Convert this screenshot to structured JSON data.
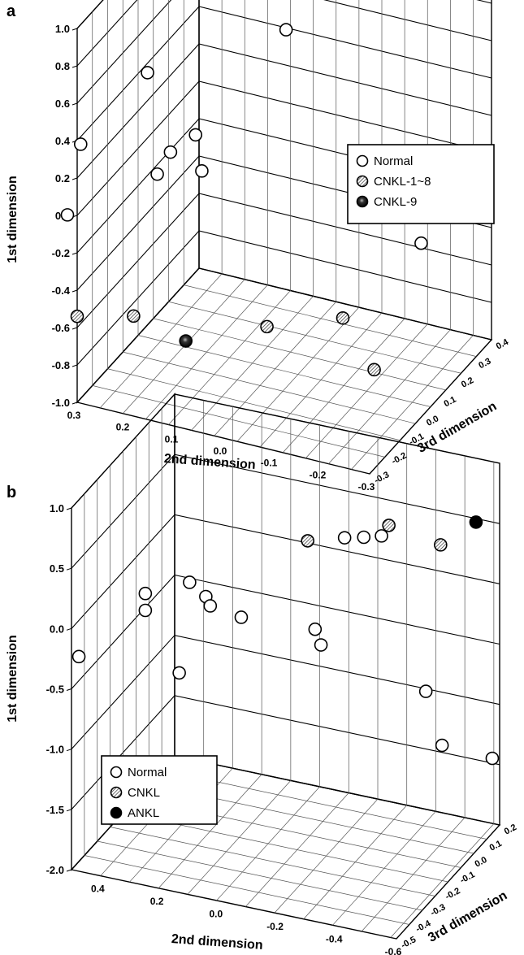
{
  "chart_data": [
    {
      "panel_label": "a",
      "type": "scatter",
      "title": "",
      "ylabel": "1st dimension",
      "xlabel": "2nd dimension",
      "zlabel": "3rd dimension",
      "ylim": [
        -1.0,
        1.0
      ],
      "xlim": [
        0.3,
        -0.3
      ],
      "zlim": [
        -0.3,
        0.4
      ],
      "y_ticks": [
        "1.0",
        "0.8",
        "0.6",
        "0.4",
        "0.2",
        "0.0",
        "-0.2",
        "-0.4",
        "-0.6",
        "-0.8",
        "-1.0"
      ],
      "x_ticks": [
        "0.3",
        "0.2",
        "0.1",
        "0.0",
        "-0.1",
        "-0.2",
        "-0.3"
      ],
      "z_ticks": [
        "-0.3",
        "-0.2",
        "-0.1",
        "0.0",
        "0.1",
        "0.2",
        "0.3",
        "0.4"
      ],
      "grid": true,
      "legend_position": "right",
      "legend": [
        {
          "label": "Normal",
          "marker": "open"
        },
        {
          "label": "CNKL-1~8",
          "marker": "hatched"
        },
        {
          "label": "CNKL-9",
          "marker": "dark"
        }
      ],
      "series": [
        {
          "name": "Normal",
          "marker": "open",
          "points": [
            {
              "x": 0.14,
              "y": 0.89,
              "z": 0.25
            },
            {
              "x": 0.1,
              "y": 0.9,
              "z": 0.32
            },
            {
              "x": 0.08,
              "y": 0.69,
              "z": 0.34
            },
            {
              "x": 0.05,
              "y": 0.64,
              "z": 0.2
            },
            {
              "x": 0.22,
              "y": 0.63,
              "z": -0.12
            },
            {
              "x": 0.3,
              "y": 0.36,
              "z": -0.28
            },
            {
              "x": 0.18,
              "y": 0.21,
              "z": -0.1
            },
            {
              "x": 0.15,
              "y": 0.26,
              "z": -0.04
            },
            {
              "x": 0.2,
              "y": 0.1,
              "z": -0.12
            },
            {
              "x": 0.13,
              "y": 0.1,
              "z": -0.06
            },
            {
              "x": 0.32,
              "y": -0.01,
              "z": -0.3
            },
            {
              "x": -0.22,
              "y": -0.35,
              "z": 0.22
            }
          ]
        },
        {
          "name": "CNKL-1~8",
          "marker": "hatched",
          "points": [
            {
              "x": 0.3,
              "y": -0.54,
              "z": -0.3
            },
            {
              "x": 0.22,
              "y": -0.59,
              "z": -0.2
            },
            {
              "x": 0.0,
              "y": -0.66,
              "z": -0.05
            },
            {
              "x": -0.12,
              "y": -0.64,
              "z": 0.05
            },
            {
              "x": -0.22,
              "y": -0.75,
              "z": -0.05
            }
          ]
        },
        {
          "name": "CNKL-9",
          "marker": "dark",
          "points": [
            {
              "x": 0.12,
              "y": -0.68,
              "z": -0.18
            }
          ]
        }
      ]
    },
    {
      "panel_label": "b",
      "type": "scatter",
      "title": "",
      "ylabel": "1st dimension",
      "xlabel": "2nd dimension",
      "zlabel": "3rd dimension",
      "ylim": [
        -2.0,
        1.0
      ],
      "xlim": [
        0.5,
        -0.6
      ],
      "zlim": [
        -0.5,
        0.2
      ],
      "y_ticks": [
        "1.0",
        "0.5",
        "0.0",
        "-0.5",
        "-1.0",
        "-1.5",
        "-2.0"
      ],
      "x_ticks": [
        "0.4",
        "0.2",
        "0.0",
        "-0.2",
        "-0.4",
        "-0.6"
      ],
      "z_ticks": [
        "-0.5",
        "-0.4",
        "-0.3",
        "-0.2",
        "-0.1",
        "0.0",
        "0.1",
        "0.2"
      ],
      "grid": true,
      "legend_position": "bottom-left",
      "legend": [
        {
          "label": "Normal",
          "marker": "open"
        },
        {
          "label": "CNKL",
          "marker": "hatched"
        },
        {
          "label": "ANKL",
          "marker": "filled"
        }
      ],
      "series": [
        {
          "name": "Normal",
          "marker": "open",
          "points": [
            {
              "x": 0.5,
              "y": -0.3,
              "z": -0.45
            },
            {
              "x": 0.3,
              "y": 0.26,
              "z": -0.4
            },
            {
              "x": 0.3,
              "y": 0.12,
              "z": -0.4
            },
            {
              "x": 0.2,
              "y": 0.27,
              "z": -0.3
            },
            {
              "x": 0.17,
              "y": 0.1,
              "z": -0.25
            },
            {
              "x": 0.18,
              "y": -0.05,
              "z": -0.2
            },
            {
              "x": 0.1,
              "y": -0.17,
              "z": -0.15
            },
            {
              "x": 0.26,
              "y": -0.58,
              "z": -0.25
            },
            {
              "x": -0.1,
              "y": -0.3,
              "z": -0.05
            },
            {
              "x": -0.12,
              "y": -0.42,
              "z": -0.05
            },
            {
              "x": -0.15,
              "y": 0.35,
              "z": 0.05
            },
            {
              "x": -0.2,
              "y": 0.34,
              "z": 0.08
            },
            {
              "x": -0.25,
              "y": 0.35,
              "z": 0.1
            },
            {
              "x": -0.45,
              "y": -0.7,
              "z": 0.0
            },
            {
              "x": -0.48,
              "y": -1.2,
              "z": 0.05
            },
            {
              "x": -0.6,
              "y": -1.38,
              "z": 0.15
            }
          ]
        },
        {
          "name": "CNKL",
          "marker": "hatched",
          "points": [
            {
              "x": -0.05,
              "y": 0.34,
              "z": 0.0
            },
            {
              "x": -0.25,
              "y": 0.37,
              "z": 0.15
            },
            {
              "x": -0.45,
              "y": 0.38,
              "z": 0.1
            }
          ]
        },
        {
          "name": "ANKL",
          "marker": "filled",
          "points": [
            {
              "x": -0.52,
              "y": 0.47,
              "z": 0.2
            }
          ]
        }
      ]
    }
  ]
}
